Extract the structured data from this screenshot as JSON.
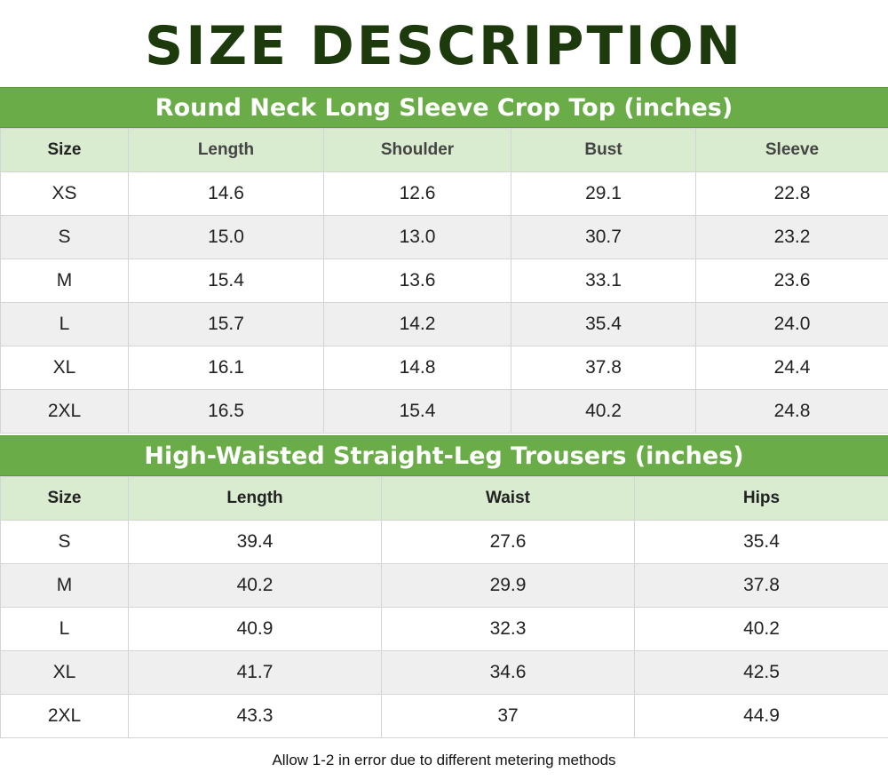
{
  "title": "SIZE DESCRIPTION",
  "tops": {
    "heading": "Round Neck Long Sleeve Crop Top (inches)",
    "columns": [
      "Size",
      "Length",
      "Shoulder",
      "Bust",
      "Sleeve"
    ],
    "rows": [
      [
        "XS",
        "14.6",
        "12.6",
        "29.1",
        "22.8"
      ],
      [
        "S",
        "15.0",
        "13.0",
        "30.7",
        "23.2"
      ],
      [
        "M",
        "15.4",
        "13.6",
        "33.1",
        "23.6"
      ],
      [
        "L",
        "15.7",
        "14.2",
        "35.4",
        "24.0"
      ],
      [
        "XL",
        "16.1",
        "14.8",
        "37.8",
        "24.4"
      ],
      [
        "2XL",
        "16.5",
        "15.4",
        "40.2",
        "24.8"
      ]
    ]
  },
  "trousers": {
    "heading": "High-Waisted Straight-Leg Trousers (inches)",
    "columns": [
      "Size",
      "Length",
      "Waist",
      "Hips"
    ],
    "rows": [
      [
        "S",
        "39.4",
        "27.6",
        "35.4"
      ],
      [
        "M",
        "40.2",
        "29.9",
        "37.8"
      ],
      [
        "L",
        "40.9",
        "32.3",
        "40.2"
      ],
      [
        "XL",
        "41.7",
        "34.6",
        "42.5"
      ],
      [
        "2XL",
        "43.3",
        "37",
        "44.9"
      ]
    ]
  },
  "note": "Allow 1-2 in error due to different metering methods",
  "colors": {
    "title": "#1c3a0c",
    "header_band": "#6aad48",
    "column_header_bg": "#d9ecd0",
    "alt_row_bg": "#efefef"
  }
}
